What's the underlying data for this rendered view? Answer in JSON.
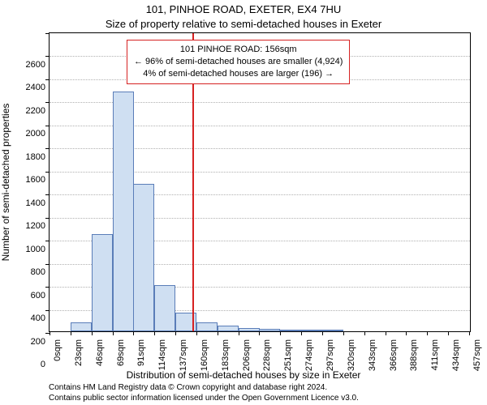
{
  "titles": {
    "address": "101, PINHOE ROAD, EXETER, EX4 7HU",
    "subtitle": "Size of property relative to semi-detached houses in Exeter"
  },
  "ylabel": "Number of semi-detached properties",
  "xlabel": "Distribution of semi-detached houses by size in Exeter",
  "footer": {
    "line1": "Contains HM Land Registry data © Crown copyright and database right 2024.",
    "line2": "Contains public sector information licensed under the Open Government Licence v3.0."
  },
  "annotation": {
    "line1": "101 PINHOE ROAD: 156sqm",
    "line2": "← 96% of semi-detached houses are smaller (4,924)",
    "line3": "4% of semi-detached houses are larger (196) →"
  },
  "chart": {
    "type": "histogram",
    "background_color": "#ffffff",
    "grid_color": "#b0b0b0",
    "axis_color": "#000000",
    "bar_fill": "#cfdff2",
    "bar_stroke": "#5a7db8",
    "ref_line_color": "#d62222",
    "ref_value": 156,
    "xlim": [
      0,
      460
    ],
    "ylim": [
      0,
      2600
    ],
    "ytick_step": 200,
    "xtick_step_px": null,
    "xticks": [
      0,
      23,
      46,
      69,
      91,
      114,
      137,
      160,
      183,
      206,
      228,
      251,
      274,
      297,
      320,
      343,
      366,
      388,
      411,
      434,
      457
    ],
    "xtick_labels": [
      "0sqm",
      "23sqm",
      "46sqm",
      "69sqm",
      "91sqm",
      "114sqm",
      "137sqm",
      "160sqm",
      "183sqm",
      "206sqm",
      "228sqm",
      "251sqm",
      "274sqm",
      "297sqm",
      "320sqm",
      "343sqm",
      "366sqm",
      "388sqm",
      "411sqm",
      "434sqm",
      "457sqm"
    ],
    "bars": [
      {
        "x": 23,
        "v": 80
      },
      {
        "x": 46,
        "v": 840
      },
      {
        "x": 69,
        "v": 2080
      },
      {
        "x": 91,
        "v": 1280
      },
      {
        "x": 114,
        "v": 400
      },
      {
        "x": 137,
        "v": 160
      },
      {
        "x": 160,
        "v": 80
      },
      {
        "x": 183,
        "v": 50
      },
      {
        "x": 206,
        "v": 30
      },
      {
        "x": 228,
        "v": 20
      },
      {
        "x": 251,
        "v": 15
      },
      {
        "x": 274,
        "v": 15
      },
      {
        "x": 297,
        "v": 10
      }
    ],
    "bar_width_units": 23,
    "title_fontsize": 13,
    "label_fontsize": 12,
    "tick_fontsize": 11,
    "annotation_fontsize": 11,
    "footer_fontsize": 10
  }
}
